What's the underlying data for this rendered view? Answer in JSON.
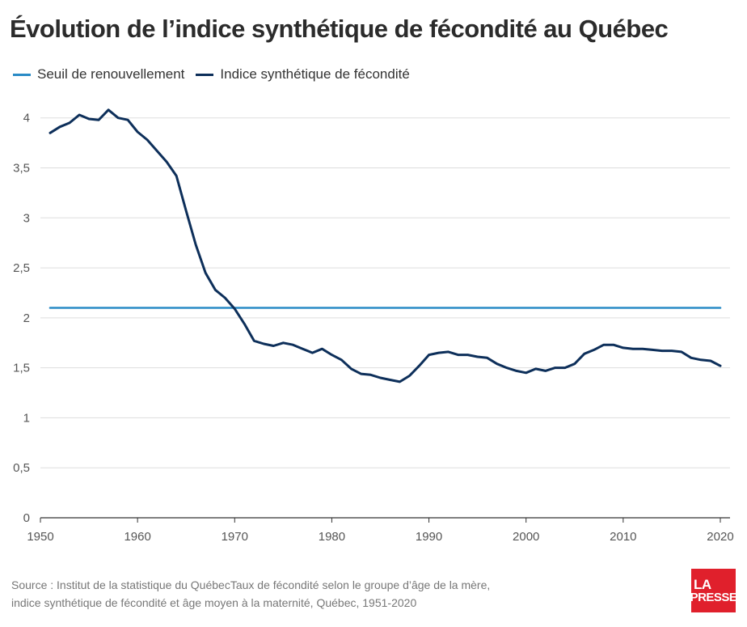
{
  "header": {
    "title": "Évolution de l’indice synthétique de fécondité au Québec"
  },
  "legend": [
    {
      "label": "Seuil de renouvellement",
      "color": "#2a8bc6"
    },
    {
      "label": "Indice synthétique de fécondité",
      "color": "#0d2f5a"
    }
  ],
  "chart_data": {
    "type": "line",
    "title": "Évolution de l’indice synthétique de fécondité au Québec",
    "xlabel": "",
    "ylabel": "",
    "xlim": [
      1950,
      2021
    ],
    "ylim": [
      0,
      4.2
    ],
    "x_ticks": [
      1950,
      1960,
      1970,
      1980,
      1990,
      2000,
      2010,
      2020
    ],
    "y_ticks": [
      0,
      0.5,
      1,
      1.5,
      2,
      2.5,
      3,
      3.5,
      4
    ],
    "y_tick_labels": [
      "0",
      "0,5",
      "1",
      "1,5",
      "2",
      "2,5",
      "3",
      "3,5",
      "4"
    ],
    "grid": "horizontal",
    "legend_position": "top-left",
    "series": [
      {
        "name": "Seuil de renouvellement",
        "color": "#2a8bc6",
        "x": [
          1951,
          2020
        ],
        "values": [
          2.1,
          2.1
        ]
      },
      {
        "name": "Indice synthétique de fécondité",
        "color": "#0d2f5a",
        "x": [
          1951,
          1952,
          1953,
          1954,
          1955,
          1956,
          1957,
          1958,
          1959,
          1960,
          1961,
          1962,
          1963,
          1964,
          1965,
          1966,
          1967,
          1968,
          1969,
          1970,
          1971,
          1972,
          1973,
          1974,
          1975,
          1976,
          1977,
          1978,
          1979,
          1980,
          1981,
          1982,
          1983,
          1984,
          1985,
          1986,
          1987,
          1988,
          1989,
          1990,
          1991,
          1992,
          1993,
          1994,
          1995,
          1996,
          1997,
          1998,
          1999,
          2000,
          2001,
          2002,
          2003,
          2004,
          2005,
          2006,
          2007,
          2008,
          2009,
          2010,
          2011,
          2012,
          2013,
          2014,
          2015,
          2016,
          2017,
          2018,
          2019,
          2020
        ],
        "values": [
          3.85,
          3.91,
          3.95,
          4.03,
          3.99,
          3.98,
          4.08,
          4.0,
          3.98,
          3.86,
          3.78,
          3.67,
          3.56,
          3.42,
          3.07,
          2.73,
          2.45,
          2.28,
          2.2,
          2.09,
          1.94,
          1.77,
          1.74,
          1.72,
          1.75,
          1.73,
          1.69,
          1.65,
          1.69,
          1.63,
          1.58,
          1.49,
          1.44,
          1.43,
          1.4,
          1.38,
          1.36,
          1.42,
          1.52,
          1.63,
          1.65,
          1.66,
          1.63,
          1.63,
          1.61,
          1.6,
          1.54,
          1.5,
          1.47,
          1.45,
          1.49,
          1.47,
          1.5,
          1.5,
          1.54,
          1.64,
          1.68,
          1.73,
          1.73,
          1.7,
          1.69,
          1.69,
          1.68,
          1.67,
          1.67,
          1.66,
          1.6,
          1.58,
          1.57,
          1.52
        ]
      }
    ]
  },
  "footer": {
    "source_line1": "Source : Institut de la statistique du QuébecTaux de fécondité selon le groupe d’âge de la mère,",
    "source_line2": "indice synthétique de fécondité et âge moyen à la maternité, Québec, 1951-2020"
  },
  "logo": {
    "line1": "LA",
    "line2": "PRESSE",
    "color": "#e0202c"
  }
}
